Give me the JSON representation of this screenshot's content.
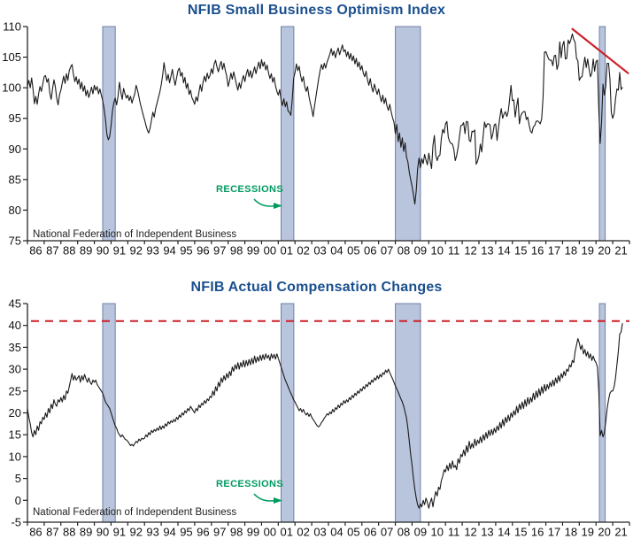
{
  "colors": {
    "background": "#ffffff",
    "title": "#1a4f8e",
    "series_line": "#1a1a1a",
    "axis": "#222222",
    "tick_text": "#111111",
    "source_text": "#222222",
    "recession_fill": "#b9c4dd",
    "recession_border": "#6f81a7",
    "red_line": "#cc2128",
    "green_label": "#009a60"
  },
  "chart_data": [
    {
      "type": "line",
      "title": "NFIB Small Business Optimism Index",
      "source_note": "National Federation of Independent Business",
      "recessions_label": "RECESSIONS",
      "frequency": "monthly",
      "x_start_year": 1986,
      "x_tick_labels": [
        "86",
        "87",
        "88",
        "89",
        "90",
        "91",
        "92",
        "93",
        "94",
        "95",
        "96",
        "97",
        "98",
        "99",
        "00",
        "01",
        "02",
        "03",
        "04",
        "05",
        "06",
        "07",
        "08",
        "09",
        "10",
        "11",
        "12",
        "13",
        "14",
        "15",
        "16",
        "17",
        "18",
        "19",
        "20",
        "21"
      ],
      "ylim": [
        75,
        110
      ],
      "y_ticks": [
        75,
        80,
        85,
        90,
        95,
        100,
        105,
        110
      ],
      "recession_bands": [
        [
          1990.5,
          1991.25
        ],
        [
          2001.17,
          2001.93
        ],
        [
          2008.0,
          2009.5
        ],
        [
          2020.2,
          2020.55
        ]
      ],
      "trend_line": {
        "x1": 2018.55,
        "y1": 109.7,
        "x2": 2021.95,
        "y2": 102.3,
        "style": "solid"
      },
      "values": [
        100.3,
        101.2,
        100.0,
        101.6,
        99.8,
        97.4,
        98.6,
        97.3,
        99.0,
        100.2,
        99.4,
        100.6,
        101.8,
        102.0,
        100.9,
        101.5,
        99.2,
        98.1,
        99.8,
        101.3,
        100.2,
        98.3,
        97.2,
        98.8,
        99.6,
        100.8,
        101.9,
        100.7,
        102.3,
        101.2,
        102.8,
        103.4,
        103.8,
        102.2,
        101.0,
        101.8,
        100.6,
        101.4,
        99.8,
        100.9,
        99.4,
        100.3,
        98.7,
        99.6,
        98.4,
        99.2,
        100.1,
        99.0,
        100.4,
        99.6,
        100.2,
        99.0,
        99.8,
        98.8,
        97.9,
        96.6,
        94.8,
        92.4,
        91.5,
        92.0,
        93.8,
        96.2,
        97.6,
        98.3,
        97.2,
        98.6,
        100.9,
        99.3,
        98.1,
        99.9,
        99.0,
        98.3,
        98.8,
        97.9,
        98.6,
        97.5,
        98.3,
        99.0,
        100.4,
        99.6,
        98.5,
        97.4,
        96.5,
        95.6,
        94.8,
        93.9,
        93.1,
        92.6,
        93.4,
        94.7,
        96.0,
        95.2,
        96.6,
        97.5,
        98.4,
        99.3,
        100.5,
        102.0,
        104.1,
        102.6,
        101.2,
        102.2,
        100.8,
        101.9,
        103.0,
        101.5,
        100.4,
        101.6,
        102.8,
        103.2,
        101.9,
        102.5,
        100.8,
        101.7,
        99.9,
        100.7,
        98.9,
        99.6,
        98.4,
        97.9,
        97.3,
        98.5,
        97.8,
        99.2,
        100.5,
        99.4,
        100.9,
        101.9,
        101.0,
        102.4,
        101.5,
        102.0,
        103.1,
        102.3,
        103.9,
        104.5,
        103.4,
        102.6,
        103.6,
        104.3,
        103.0,
        104.0,
        102.8,
        101.9,
        100.2,
        101.1,
        102.4,
        101.4,
        102.6,
        101.6,
        100.5,
        99.6,
        100.8,
        99.9,
        101.2,
        102.0,
        101.0,
        102.2,
        103.0,
        101.8,
        102.8,
        101.6,
        102.5,
        103.4,
        102.3,
        103.3,
        104.2,
        103.1,
        104.6,
        103.5,
        104.2,
        102.9,
        103.7,
        102.4,
        101.5,
        102.3,
        100.9,
        101.7,
        100.3,
        99.4,
        98.8,
        99.7,
        98.0,
        97.1,
        98.2,
        96.9,
        97.7,
        96.2,
        96.0,
        95.5,
        98.0,
        101.5,
        102.5,
        103.9,
        102.8,
        103.5,
        102.0,
        101.0,
        101.8,
        100.2,
        99.4,
        100.2,
        98.6,
        97.5,
        96.5,
        95.3,
        97.0,
        98.5,
        100.0,
        101.5,
        102.8,
        103.8,
        103.0,
        104.0,
        103.2,
        104.2,
        104.8,
        105.5,
        106.4,
        105.3,
        106.0,
        104.9,
        105.8,
        106.5,
        105.4,
        106.2,
        107.0,
        105.9,
        106.2,
        105.1,
        105.9,
        104.7,
        105.6,
        104.4,
        105.2,
        103.9,
        104.8,
        103.4,
        104.2,
        102.9,
        103.6,
        102.4,
        101.8,
        102.7,
        101.3,
        100.4,
        101.5,
        100.1,
        99.3,
        100.6,
        99.7,
        98.9,
        99.8,
        98.6,
        97.7,
        98.8,
        97.4,
        98.3,
        97.0,
        96.3,
        97.3,
        96.1,
        95.1,
        94.4,
        92.5,
        94.0,
        91.2,
        92.6,
        90.3,
        91.8,
        89.6,
        91.0,
        88.7,
        87.9,
        86.2,
        85.0,
        83.9,
        82.5,
        81.0,
        83.2,
        86.8,
        88.5,
        86.9,
        88.4,
        87.6,
        89.1,
        88.2,
        87.4,
        89.3,
        88.0,
        86.8,
        90.6,
        92.2,
        89.0,
        88.1,
        88.8,
        89.0,
        91.7,
        93.2,
        92.6,
        94.1,
        94.5,
        91.9,
        91.2,
        90.9,
        90.8,
        89.9,
        88.1,
        88.9,
        90.2,
        92.0,
        93.8,
        93.9,
        94.3,
        92.5,
        94.5,
        94.4,
        91.4,
        91.2,
        92.9,
        92.8,
        93.1,
        87.5,
        88.0,
        88.9,
        90.8,
        89.5,
        92.1,
        94.4,
        93.5,
        94.1,
        94.1,
        93.9,
        91.6,
        92.5,
        93.9,
        94.1,
        91.4,
        93.4,
        95.2,
        96.6,
        95.0,
        95.7,
        96.1,
        95.3,
        96.1,
        98.1,
        100.4,
        97.9,
        98.0,
        95.2,
        96.9,
        98.3,
        94.1,
        95.4,
        95.9,
        96.1,
        96.1,
        94.8,
        95.2,
        93.9,
        92.9,
        92.6,
        93.6,
        93.8,
        94.5,
        94.6,
        94.4,
        94.1,
        94.9,
        98.4,
        105.8,
        105.9,
        105.3,
        104.7,
        104.5,
        104.5,
        103.6,
        105.2,
        105.3,
        103.0,
        103.8,
        107.5,
        104.9,
        106.9,
        107.6,
        104.7,
        104.8,
        107.8,
        107.2,
        107.9,
        108.8,
        107.9,
        107.4,
        104.8,
        104.4,
        101.2,
        101.7,
        101.8,
        103.5,
        105.0,
        103.3,
        104.7,
        103.1,
        101.8,
        102.4,
        104.7,
        102.7,
        104.3,
        104.5,
        96.4,
        90.9,
        94.4,
        100.6,
        98.8,
        100.2,
        104.0,
        104.0,
        101.4,
        95.9,
        95.0,
        95.8,
        98.2,
        99.8,
        99.6,
        102.5,
        99.7,
        100.1
      ]
    },
    {
      "type": "line",
      "title": "NFIB Actual Compensation Changes",
      "source_note": "National Federation of Independent Business",
      "recessions_label": "RECESSIONS",
      "frequency": "monthly",
      "x_start_year": 1986,
      "x_tick_labels": [
        "86",
        "87",
        "88",
        "89",
        "90",
        "91",
        "92",
        "93",
        "94",
        "95",
        "96",
        "97",
        "98",
        "99",
        "00",
        "01",
        "02",
        "03",
        "04",
        "05",
        "06",
        "07",
        "08",
        "09",
        "10",
        "11",
        "12",
        "13",
        "14",
        "15",
        "16",
        "17",
        "18",
        "19",
        "20",
        "21"
      ],
      "ylim": [
        -5,
        45
      ],
      "y_ticks": [
        -5,
        0,
        5,
        10,
        15,
        20,
        25,
        30,
        35,
        40,
        45
      ],
      "recession_bands": [
        [
          1990.5,
          1991.25
        ],
        [
          2001.17,
          2001.93
        ],
        [
          2008.0,
          2009.5
        ],
        [
          2020.2,
          2020.55
        ]
      ],
      "reference_line": {
        "value": 41,
        "style": "dashed"
      },
      "values": [
        21,
        19,
        17.5,
        15.5,
        14.5,
        16,
        15,
        17,
        16,
        18,
        17.5,
        19,
        18.5,
        20,
        19,
        21,
        20,
        22,
        21,
        23,
        22,
        21.5,
        23,
        22.5,
        23.5,
        22.5,
        24,
        23,
        25,
        24.5,
        26,
        27.5,
        29,
        27.5,
        28.5,
        27.5,
        28,
        28.5,
        27,
        28.5,
        27.5,
        28.8,
        27.8,
        27,
        28,
        27,
        26.5,
        27.5,
        27,
        27.5,
        26.5,
        26,
        25.5,
        25,
        24.5,
        23.5,
        22.5,
        22,
        21.5,
        21,
        20,
        19,
        18,
        17,
        16.5,
        15.5,
        15,
        14.5,
        15,
        14.5,
        14,
        13.8,
        13.5,
        13,
        12.5,
        12.8,
        12.4,
        13,
        13.5,
        13.2,
        14,
        13.6,
        14.2,
        14,
        14.2,
        15,
        14.5,
        15.5,
        15,
        16,
        15.5,
        16.2,
        15.8,
        16.5,
        16,
        17,
        16.2,
        17,
        16.5,
        17.5,
        17,
        18,
        17.5,
        18.2,
        17.8,
        18.5,
        18,
        19,
        18.5,
        19.5,
        19,
        20,
        19.5,
        20.5,
        20,
        21,
        20.5,
        21.5,
        21,
        20.5,
        20,
        21,
        20.5,
        21.8,
        21.2,
        22.2,
        21.8,
        22.8,
        22.2,
        23.2,
        22.8,
        23.8,
        23.5,
        25,
        24,
        26,
        25,
        27,
        26,
        28,
        27,
        28.5,
        27.5,
        29,
        28,
        29.5,
        28.5,
        30.5,
        29.5,
        31,
        30,
        31.5,
        30,
        31.5,
        30.5,
        32,
        30.5,
        32,
        30.8,
        32.2,
        31,
        32.5,
        31.2,
        33,
        31.5,
        32.8,
        31.8,
        33.2,
        32,
        33.3,
        32.2,
        33.5,
        32.5,
        33.2,
        32,
        33.5,
        32.5,
        33.4,
        32.3,
        33.5,
        32.5,
        31.5,
        30.5,
        29.5,
        28.5,
        27.5,
        26.8,
        26,
        25.2,
        24.5,
        23.8,
        23,
        22.5,
        21.8,
        21.2,
        20.5,
        21,
        20.2,
        20.8,
        20,
        19.5,
        20,
        19.2,
        19.8,
        19,
        18.5,
        18,
        17.5,
        17,
        16.8,
        17.2,
        17.8,
        18.2,
        18.8,
        19.2,
        19.8,
        19.5,
        20.2,
        19.8,
        20.8,
        20.2,
        21.2,
        20.8,
        21.8,
        21.2,
        22.2,
        21.8,
        22.8,
        22.2,
        23,
        22.5,
        23.5,
        23,
        24,
        23.5,
        24.5,
        24,
        25,
        24.5,
        25.5,
        25,
        26,
        25.5,
        26.5,
        26,
        27,
        26.5,
        27.5,
        27,
        28,
        27.5,
        28.5,
        27.8,
        28.8,
        28.2,
        29.2,
        28.8,
        29.8,
        29.2,
        30,
        29.2,
        28.5,
        27.8,
        27,
        26.2,
        25.5,
        24.8,
        24,
        23.2,
        22.5,
        21.5,
        20.2,
        18.8,
        16.5,
        13.5,
        10.5,
        8,
        5,
        2.5,
        0.5,
        -1,
        -1.8,
        -0.8,
        -1.5,
        0,
        -1,
        0.5,
        -0.5,
        -1.8,
        -0.5,
        0.5,
        -1.5,
        0.5,
        2,
        1,
        3,
        2.5,
        4.5,
        5.5,
        7,
        6.5,
        8,
        6.8,
        8.5,
        7.2,
        9,
        7.5,
        8,
        7,
        9.5,
        8.5,
        10.5,
        10,
        11.5,
        10.2,
        12.5,
        11,
        13.5,
        11.8,
        13,
        12,
        14,
        12.5,
        13.8,
        13,
        14.5,
        13.2,
        15,
        13.8,
        15.5,
        14.2,
        16,
        14.8,
        16.2,
        15,
        16.5,
        15.5,
        17,
        16,
        17.8,
        16.5,
        18.5,
        17,
        19,
        17.8,
        19.5,
        18.2,
        20,
        19,
        20.5,
        19.5,
        21.5,
        20,
        22,
        20.8,
        22.5,
        21,
        23,
        21.5,
        23.5,
        22,
        23.5,
        22.5,
        24.5,
        23,
        25,
        23.5,
        25.5,
        24,
        26,
        24.5,
        26.5,
        25,
        26.5,
        25.5,
        27,
        26,
        27.5,
        26.2,
        28,
        26.8,
        28.5,
        27.2,
        29,
        28,
        29.5,
        28.5,
        30,
        29.5,
        31,
        30.5,
        32,
        31.5,
        34,
        35.5,
        37,
        36,
        34.5,
        35.5,
        33.5,
        34.5,
        33,
        34,
        32.5,
        33.5,
        32,
        33,
        32,
        31.5,
        30.5,
        25,
        14.8,
        16,
        14.5,
        15.5,
        18,
        21,
        23,
        24.5,
        25,
        25,
        26,
        28,
        31,
        34,
        38,
        38.5,
        40.5
      ]
    }
  ]
}
